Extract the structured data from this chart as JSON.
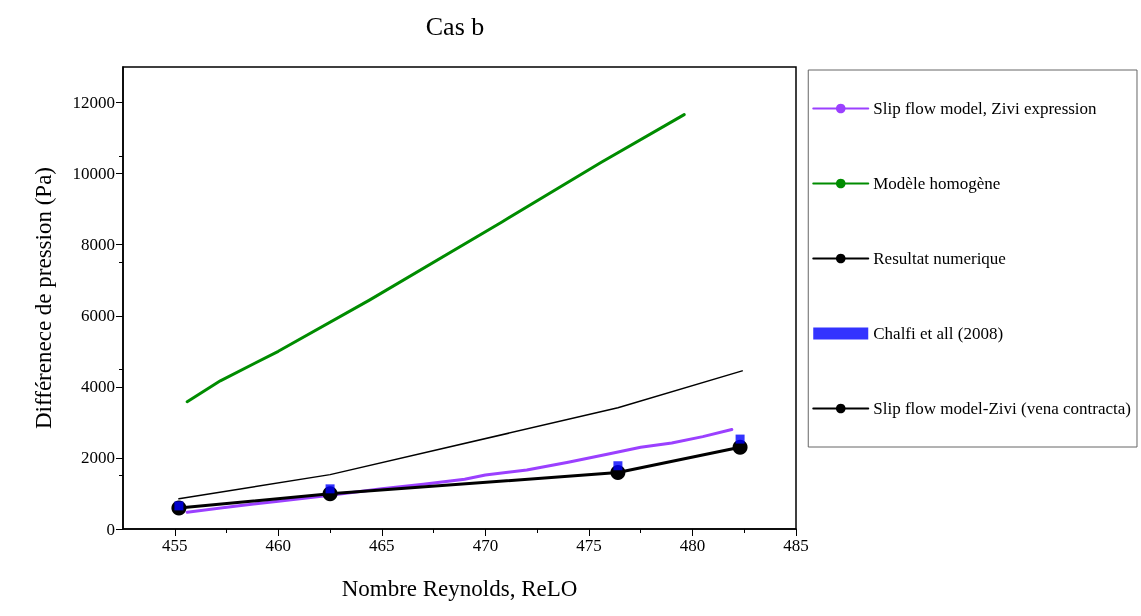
{
  "chart_data": {
    "type": "line",
    "title": "Cas b",
    "xlabel": "Nombre Reynolds, ReLO",
    "ylabel": "Différenece de pression (Pa)",
    "xlim": [
      452.5,
      485
    ],
    "xticks": [
      455,
      460,
      465,
      470,
      475,
      480,
      485
    ],
    "ylim": [
      0,
      13000
    ],
    "yticks": [
      0,
      2000,
      4000,
      6000,
      8000,
      10000,
      12000
    ],
    "grid": false,
    "legend": "right",
    "line_style": "solid",
    "series": [
      {
        "name": "Slip flow model, Zivi expression",
        "color": "#9b40ff",
        "marker": "none",
        "x": [
          455.6,
          458,
          460,
          462.5,
          465,
          467,
          469,
          470,
          472,
          474,
          476,
          477.5,
          479,
          480.5,
          481.9
        ],
        "values": [
          470,
          650,
          780,
          950,
          1130,
          1260,
          1400,
          1520,
          1660,
          1880,
          2120,
          2300,
          2420,
          2600,
          2800
        ]
      },
      {
        "name": "Modèle homogène",
        "color": "#008c00",
        "marker": "none",
        "x": [
          455.6,
          457.2,
          460,
          464.4,
          470.8,
          475.6,
          479.6
        ],
        "values": [
          3580,
          4170,
          5000,
          6440,
          8640,
          10320,
          11660
        ]
      },
      {
        "name": "Resultat numerique",
        "color": "#000000",
        "marker": "circle",
        "x": [
          455.2,
          462.5,
          476.4,
          482.3
        ],
        "values": [
          590,
          990,
          1590,
          2300
        ]
      },
      {
        "name": "Chalfi et all (2008)",
        "type": "scatter",
        "color": "#0000ff",
        "marker": "square",
        "x": [
          455.2,
          462.5,
          476.4,
          482.3
        ],
        "values": [
          650,
          1130,
          1780,
          2530
        ]
      },
      {
        "name": "Slip flow model-Zivi (vena contracta)",
        "color": "#000000",
        "marker": "none",
        "x": [
          455.2,
          462.5,
          476.4,
          482.4
        ],
        "values": [
          850,
          1530,
          3410,
          4450
        ]
      }
    ]
  }
}
